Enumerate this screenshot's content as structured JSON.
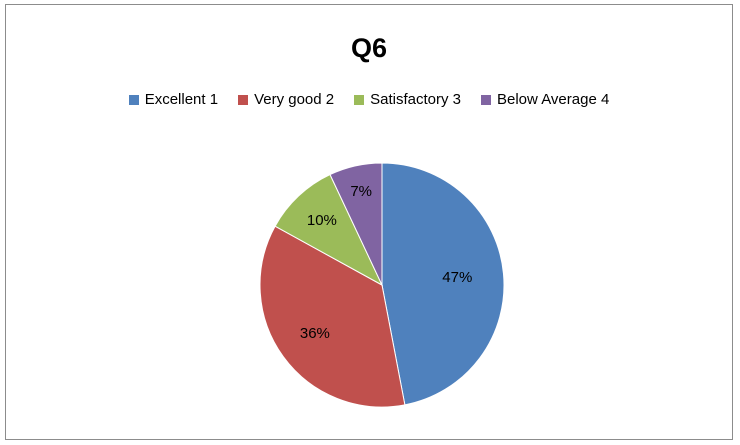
{
  "chart_data": {
    "type": "pie",
    "title": "Q6",
    "legend_position": "top",
    "categories": [
      "Excellent 1",
      "Very good 2",
      "Satisfactory 3",
      "Below Average 4"
    ],
    "values": [
      47,
      36,
      10,
      7
    ],
    "labels": [
      "47%",
      "36%",
      "10%",
      "7%"
    ],
    "colors": [
      "#4f81bd",
      "#c0504d",
      "#9bbb59",
      "#8064a2"
    ]
  }
}
